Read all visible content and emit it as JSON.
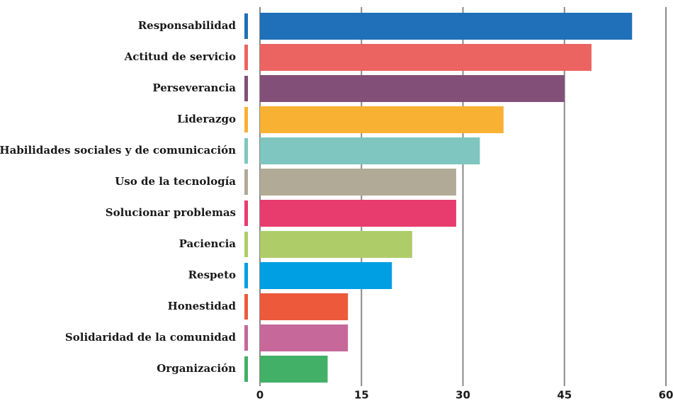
{
  "chart_data": {
    "type": "bar",
    "orientation": "horizontal",
    "categories": [
      "Responsabilidad",
      "Actitud de servicio",
      "Perseverancia",
      "Liderazgo",
      "Habilidades sociales y de comunicación",
      "Uso de la tecnología",
      "Solucionar problemas",
      "Paciencia",
      "Respeto",
      "Honestidad",
      "Solidaridad de la comunidad",
      "Organización"
    ],
    "values": [
      55,
      49,
      45,
      36,
      32.5,
      29,
      29,
      22.5,
      19.5,
      13,
      13,
      10
    ],
    "colors": [
      "#1f70b8",
      "#ec6461",
      "#824f78",
      "#f8b133",
      "#7ec6bf",
      "#b1aa97",
      "#e83c6e",
      "#aecd69",
      "#009fe3",
      "#ec5a3b",
      "#c6689a",
      "#42b067"
    ],
    "xlim": [
      0,
      60
    ],
    "xticks": [
      0,
      15,
      30,
      45,
      60
    ],
    "grid": true
  }
}
